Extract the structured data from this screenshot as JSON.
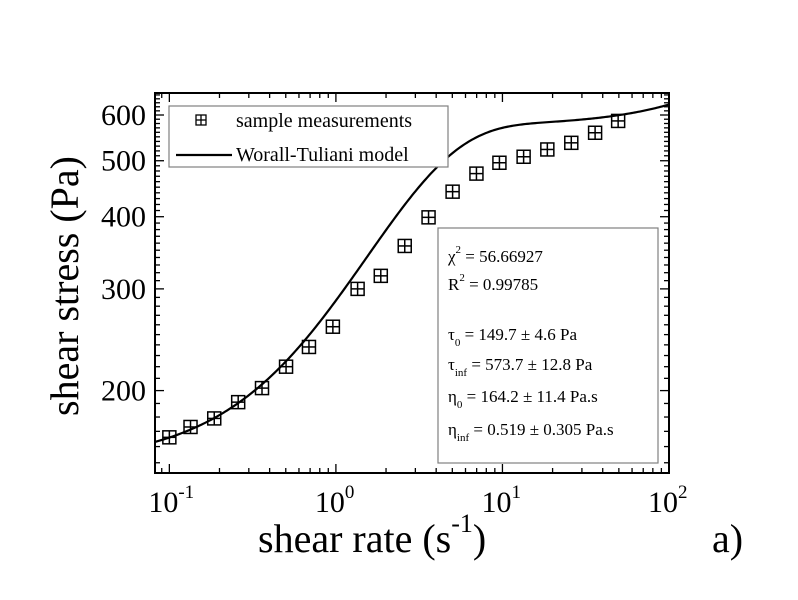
{
  "chart_data": {
    "type": "scatter",
    "title": "",
    "panel_label": "a)",
    "xlabel": "shear rate (s",
    "xlabel_sup": "-1",
    "xlabel_end": ")",
    "ylabel": "shear stress (Pa)",
    "xscale": "log",
    "yscale": "log",
    "xlim": [
      0.082,
      100
    ],
    "ylim": [
      144,
      655
    ],
    "grid": false,
    "x_ticks": [
      {
        "value": 0.1,
        "base": "10",
        "exp": "-1"
      },
      {
        "value": 1,
        "base": "10",
        "exp": "0"
      },
      {
        "value": 10,
        "base": "10",
        "exp": "1"
      },
      {
        "value": 100,
        "base": "10",
        "exp": "2"
      }
    ],
    "y_ticks": [
      {
        "value": 200,
        "label": "200"
      },
      {
        "value": 300,
        "label": "300"
      },
      {
        "value": 400,
        "label": "400"
      },
      {
        "value": 500,
        "label": "500"
      },
      {
        "value": 600,
        "label": "600"
      }
    ],
    "legend": {
      "position": "top-left",
      "entries": [
        "sample measurements",
        "Worall-Tuliani model"
      ]
    },
    "series": [
      {
        "name": "sample measurements",
        "type": "scatter",
        "marker": "square-cross",
        "x": [
          0.1,
          0.134,
          0.186,
          0.259,
          0.36,
          0.502,
          0.689,
          0.959,
          1.35,
          1.86,
          2.59,
          3.6,
          5.02,
          6.98,
          9.59,
          13.4,
          18.6,
          25.9,
          36.0,
          49.5
        ],
        "y": [
          166,
          173,
          179,
          191,
          202,
          220,
          238,
          258,
          300,
          316,
          356,
          399,
          442,
          475,
          496,
          508,
          523,
          537,
          559,
          586
        ]
      },
      {
        "name": "Worall-Tuliani model",
        "type": "line",
        "model": {
          "tau0": 149.7,
          "tau_inf": 573.7,
          "eta0": 164.2,
          "eta_inf": 0.519
        }
      }
    ],
    "annotation": {
      "chi2": {
        "sym": "χ",
        "sup": "2",
        "text": " = 56.66927"
      },
      "r2": {
        "sym": "R",
        "sup": "2",
        "text": " = 0.99785"
      },
      "tau0": {
        "sym": "τ",
        "sub": "0",
        "text": " = 149.7 ± 4.6 Pa"
      },
      "tau_inf": {
        "sym": "τ",
        "sub": "inf",
        "text": " = 573.7 ± 12.8 Pa"
      },
      "eta0": {
        "sym": "η",
        "sub": "0",
        "text": " = 164.2 ± 11.4 Pa.s"
      },
      "eta_inf": {
        "sym": "η",
        "sub": "inf",
        "text": " = 0.519 ± 0.305 Pa.s"
      }
    },
    "colors": {
      "line": "#000000",
      "marker": "#000000",
      "box_border": "#808080"
    }
  }
}
